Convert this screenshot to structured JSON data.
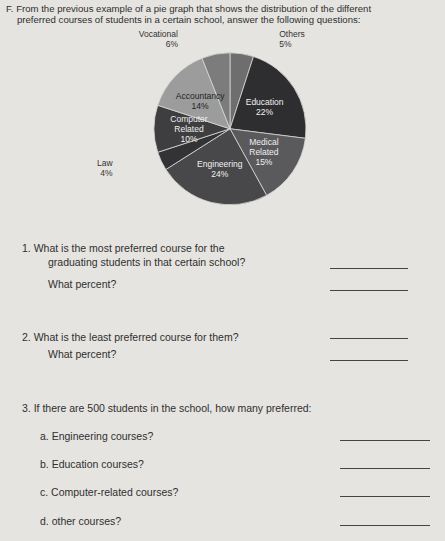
{
  "header": {
    "lines": [
      "F. From the previous example of a pie graph that shows the distribution of the different",
      "preferred courses of students in a certain school, answer the following questions:"
    ]
  },
  "chart_data": {
    "type": "pie",
    "categories": [
      "Others",
      "Education",
      "Medical Related",
      "Engineering",
      "Law",
      "Computer Related",
      "Accountancy",
      "Vocational"
    ],
    "values": [
      5,
      22,
      15,
      24,
      4,
      10,
      14,
      6
    ],
    "value_labels": [
      "5%",
      "22%",
      "15%",
      "24%",
      "4%",
      "10%",
      "14%",
      "6%"
    ],
    "colors": [
      "#6e6e6e",
      "#2e2e30",
      "#5a5a5c",
      "#48484a",
      "#333335",
      "#3e3e40",
      "#9c9c9c",
      "#7c7c7c"
    ],
    "data_labels": true
  },
  "questions": [
    {
      "lines": [
        "1. What is the most preferred course for the",
        "graduating students in that certain school?"
      ],
      "follow_up": "What percent?"
    },
    {
      "lines": [
        "2. What is the least preferred course for them?"
      ],
      "follow_up": "What percent?"
    },
    {
      "lines": [
        "3. If there are 500 students in the school, how many preferred:"
      ],
      "parts": [
        "a. Engineering courses?",
        "b. Education courses?",
        "c. Computer-related courses?",
        "d. other courses?"
      ]
    }
  ]
}
